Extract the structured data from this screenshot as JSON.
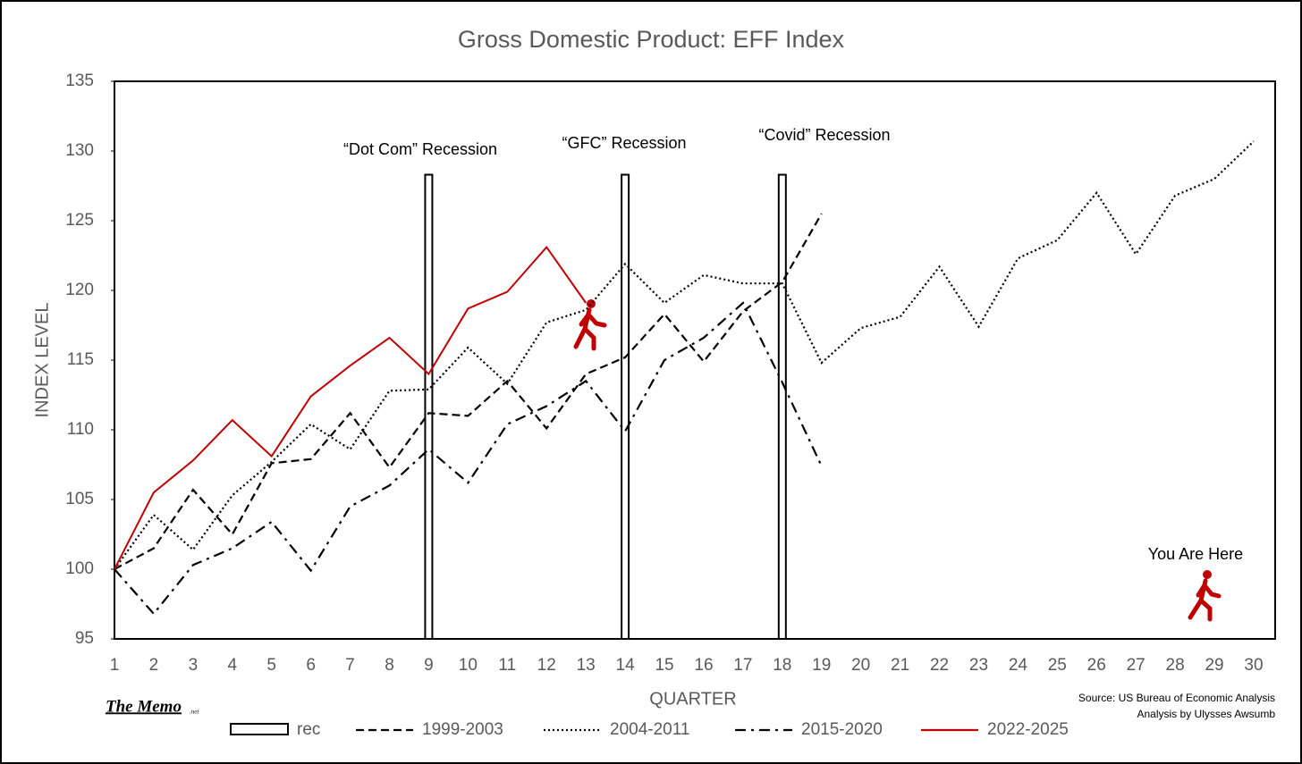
{
  "chart_data": {
    "type": "line",
    "title": "Gross Domestic Product: EFF Index",
    "x_label": "QUARTER",
    "y_label": "INDEX LEVEL",
    "categories": [
      1,
      2,
      3,
      4,
      5,
      6,
      7,
      8,
      9,
      10,
      11,
      12,
      13,
      14,
      15,
      16,
      17,
      18,
      19,
      20,
      21,
      22,
      23,
      24,
      25,
      26,
      27,
      28,
      29,
      30
    ],
    "ylim": [
      95,
      135
    ],
    "yticks": [
      95,
      100,
      105,
      110,
      115,
      120,
      125,
      130,
      135
    ],
    "recession": {
      "name": "rec",
      "color": "#000000",
      "values": [
        null,
        null,
        null,
        null,
        null,
        null,
        null,
        null,
        128.3,
        null,
        null,
        null,
        null,
        128.3,
        null,
        null,
        null,
        128.3,
        null,
        null,
        null,
        null,
        null,
        null,
        null,
        null,
        null,
        null,
        null,
        null
      ]
    },
    "series": [
      {
        "name": "1999-2003",
        "color": "#000000",
        "dash": "dashed",
        "values": [
          100,
          101.5,
          105.7,
          102.5,
          107.6,
          107.9,
          111.2,
          107.3,
          111.2,
          111.0,
          113.5,
          110.1,
          114.0,
          115.2,
          118.3,
          114.9,
          118.5,
          120.6,
          125.5,
          null,
          null,
          null,
          null,
          null,
          null,
          null,
          null,
          null,
          null,
          null
        ]
      },
      {
        "name": "2004-2011",
        "color": "#000000",
        "dash": "dotted",
        "values": [
          100,
          103.9,
          101.4,
          105.3,
          107.7,
          110.4,
          108.6,
          112.8,
          112.9,
          115.9,
          113.3,
          117.7,
          118.6,
          121.9,
          119.1,
          121.1,
          120.5,
          120.5,
          114.8,
          117.3,
          118.1,
          121.7,
          117.4,
          122.3,
          123.6,
          127.0,
          122.6,
          126.8,
          128.0,
          130.7
        ]
      },
      {
        "name": "2015-2020",
        "color": "#000000",
        "dash": "dashdot",
        "values": [
          100,
          96.8,
          100.3,
          101.5,
          103.4,
          99.9,
          104.5,
          106.0,
          108.6,
          106.2,
          110.4,
          111.7,
          113.5,
          109.9,
          115.0,
          116.6,
          119.1,
          113.4,
          107.4,
          null,
          null,
          null,
          null,
          null,
          null,
          null,
          null,
          null,
          null,
          null
        ]
      },
      {
        "name": "2022-2025",
        "color": "#c00000",
        "dash": "solid",
        "values": [
          100,
          105.5,
          107.8,
          110.7,
          108.1,
          112.4,
          114.6,
          116.6,
          114.0,
          118.7,
          119.9,
          123.1,
          119.1,
          null,
          null,
          null,
          null,
          null,
          null,
          null,
          null,
          null,
          null,
          null,
          null,
          null,
          null,
          null,
          null,
          null
        ]
      }
    ],
    "annotations": [
      "“Dot Com” Recession",
      "“GFC” Recession",
      "“Covid” Recession",
      "You Are Here"
    ],
    "branding": {
      "name": "The Memo",
      "suffix": ".net"
    },
    "source": [
      "Source: US Bureau of Economic Analysis",
      "Analysis by Ulysses Awsumb"
    ]
  }
}
